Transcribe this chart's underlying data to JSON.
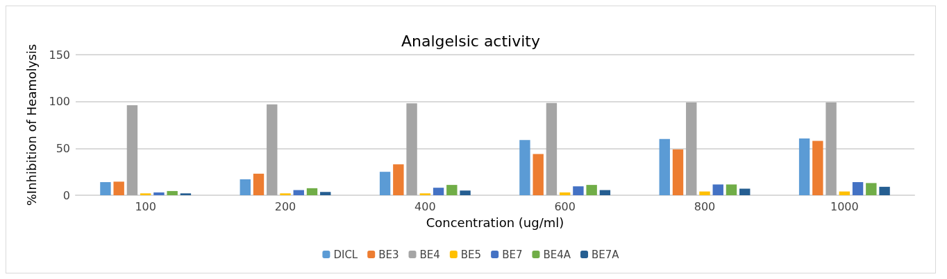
{
  "chart_data": {
    "type": "bar",
    "title": "Analgelsic activity",
    "xlabel": "Concentration (ug/ml)",
    "ylabel": "%Inhibition of Heamolysis",
    "categories": [
      "100",
      "200",
      "400",
      "600",
      "800",
      "1000"
    ],
    "series": [
      {
        "name": "DICL",
        "color": "#5b9bd5",
        "values": [
          14,
          17,
          25,
          59,
          60,
          60.5
        ]
      },
      {
        "name": "BE3",
        "color": "#ed7d31",
        "values": [
          14.5,
          23,
          33,
          44,
          49,
          58
        ]
      },
      {
        "name": "BE4",
        "color": "#a5a5a5",
        "values": [
          96,
          97,
          98,
          98.5,
          99,
          99
        ]
      },
      {
        "name": "BE5",
        "color": "#ffc000",
        "values": [
          2,
          2,
          2,
          3,
          4,
          4
        ]
      },
      {
        "name": "BE7",
        "color": "#4472c4",
        "values": [
          3,
          5.5,
          8,
          9.5,
          11.5,
          14
        ]
      },
      {
        "name": "BE4A",
        "color": "#70ad47",
        "values": [
          4.5,
          7.5,
          11,
          11,
          11.5,
          13
        ]
      },
      {
        "name": "BE7A",
        "color": "#255e91",
        "values": [
          2,
          3.5,
          5,
          5.5,
          7,
          9
        ]
      }
    ],
    "ylim": [
      0,
      150
    ],
    "yticks": [
      0,
      50,
      100,
      150
    ],
    "grid": "y",
    "legend": "bottom"
  }
}
